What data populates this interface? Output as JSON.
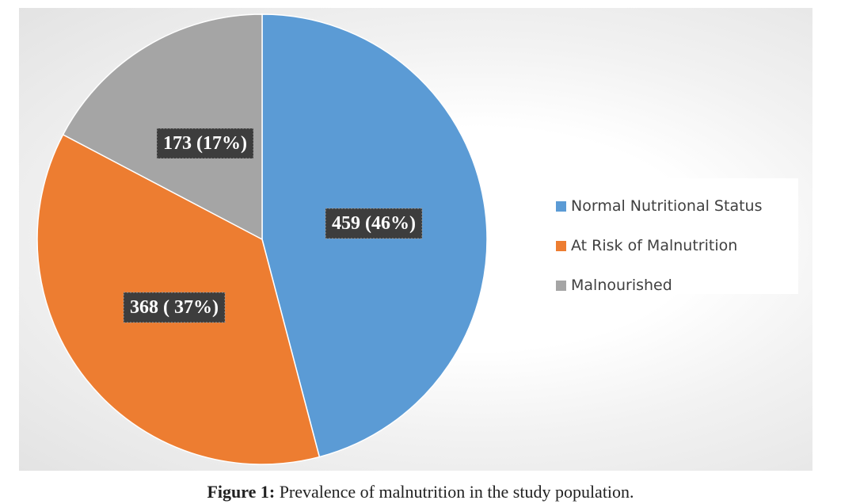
{
  "chart_data": {
    "type": "pie",
    "title": "",
    "categories": [
      "Normal Nutritional Status",
      "At Risk of Malnutrition",
      "Malnourished"
    ],
    "values": [
      459,
      368,
      173
    ],
    "percentages": [
      46,
      37,
      17
    ],
    "data_labels": [
      "459 (46%)",
      "368 ( 37%)",
      "173 (17%)"
    ],
    "colors": [
      "#5b9bd5",
      "#ed7d31",
      "#a5a5a5"
    ],
    "start_angle_deg": 0,
    "direction": "clockwise",
    "legend_position": "right"
  },
  "caption": {
    "label": "Figure 1:",
    "text": " Prevalence of malnutrition in the study population."
  }
}
